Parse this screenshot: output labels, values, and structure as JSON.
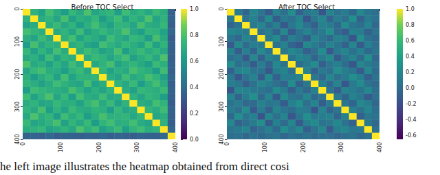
{
  "caption": "he left image illustrates the heatmap obtained from direct cosi",
  "chart_data": [
    {
      "type": "heatmap",
      "title": "Before TOC Select",
      "xlim": [
        0,
        400
      ],
      "ylim": [
        0,
        400
      ],
      "xticks": [
        0,
        100,
        200,
        300,
        400
      ],
      "yticks": [
        0,
        100,
        200,
        300,
        400
      ],
      "colorbar": {
        "range": [
          0,
          1
        ],
        "ticks": [
          {
            "value": 0,
            "label": "0.0"
          },
          0.2,
          0.4,
          0.6,
          0.8,
          {
            "value": 1,
            "label": "1.0"
          }
        ]
      },
      "cells": [
        [
          1.0,
          0.72,
          0.65,
          0.78,
          0.7,
          0.62,
          0.75,
          0.68,
          0.8,
          0.66,
          0.71,
          0.74,
          0.63,
          0.77,
          0.69,
          0.73,
          0.67,
          0.76,
          0.7,
          0.35
        ],
        [
          0.72,
          1.0,
          0.69,
          0.74,
          0.66,
          0.79,
          0.64,
          0.71,
          0.68,
          0.75,
          0.62,
          0.7,
          0.77,
          0.65,
          0.73,
          0.68,
          0.8,
          0.66,
          0.72,
          0.36
        ],
        [
          0.65,
          0.69,
          1.0,
          0.7,
          0.76,
          0.67,
          0.73,
          0.63,
          0.71,
          0.78,
          0.69,
          0.64,
          0.74,
          0.72,
          0.66,
          0.79,
          0.7,
          0.68,
          0.75,
          0.34
        ],
        [
          0.78,
          0.74,
          0.7,
          1.0,
          0.68,
          0.73,
          0.66,
          0.77,
          0.64,
          0.7,
          0.75,
          0.69,
          0.71,
          0.8,
          0.67,
          0.63,
          0.74,
          0.72,
          0.65,
          0.37
        ],
        [
          0.7,
          0.66,
          0.76,
          0.68,
          1.0,
          0.71,
          0.78,
          0.65,
          0.73,
          0.69,
          0.64,
          0.77,
          0.7,
          0.66,
          0.75,
          0.72,
          0.62,
          0.79,
          0.68,
          0.33
        ],
        [
          0.62,
          0.79,
          0.67,
          0.73,
          0.71,
          1.0,
          0.69,
          0.74,
          0.66,
          0.63,
          0.78,
          0.72,
          0.68,
          0.75,
          0.7,
          0.65,
          0.77,
          0.64,
          0.73,
          0.36
        ],
        [
          0.75,
          0.64,
          0.73,
          0.66,
          0.78,
          0.69,
          1.0,
          0.7,
          0.77,
          0.72,
          0.65,
          0.68,
          0.79,
          0.63,
          0.71,
          0.76,
          0.69,
          0.74,
          0.67,
          0.35
        ],
        [
          0.68,
          0.71,
          0.63,
          0.77,
          0.65,
          0.74,
          0.7,
          1.0,
          0.69,
          0.76,
          0.73,
          0.66,
          0.72,
          0.78,
          0.64,
          0.7,
          0.75,
          0.67,
          0.8,
          0.34
        ],
        [
          0.8,
          0.68,
          0.71,
          0.64,
          0.73,
          0.66,
          0.77,
          0.69,
          1.0,
          0.67,
          0.72,
          0.79,
          0.65,
          0.7,
          0.74,
          0.68,
          0.63,
          0.76,
          0.71,
          0.36
        ],
        [
          0.66,
          0.75,
          0.78,
          0.7,
          0.69,
          0.63,
          0.72,
          0.76,
          0.67,
          1.0,
          0.74,
          0.65,
          0.71,
          0.68,
          0.79,
          0.73,
          0.7,
          0.62,
          0.77,
          0.35
        ],
        [
          0.71,
          0.62,
          0.69,
          0.75,
          0.64,
          0.78,
          0.65,
          0.73,
          0.72,
          0.74,
          1.0,
          0.7,
          0.66,
          0.77,
          0.68,
          0.71,
          0.79,
          0.73,
          0.64,
          0.37
        ],
        [
          0.74,
          0.7,
          0.64,
          0.69,
          0.77,
          0.72,
          0.68,
          0.66,
          0.79,
          0.65,
          0.7,
          1.0,
          0.73,
          0.67,
          0.76,
          0.62,
          0.71,
          0.78,
          0.69,
          0.34
        ],
        [
          0.63,
          0.77,
          0.74,
          0.71,
          0.7,
          0.68,
          0.79,
          0.72,
          0.65,
          0.71,
          0.66,
          0.73,
          1.0,
          0.69,
          0.64,
          0.75,
          0.72,
          0.7,
          0.76,
          0.36
        ],
        [
          0.77,
          0.65,
          0.72,
          0.8,
          0.66,
          0.75,
          0.63,
          0.78,
          0.7,
          0.68,
          0.77,
          0.67,
          0.69,
          1.0,
          0.72,
          0.66,
          0.74,
          0.71,
          0.63,
          0.35
        ],
        [
          0.69,
          0.73,
          0.66,
          0.67,
          0.75,
          0.7,
          0.71,
          0.64,
          0.74,
          0.79,
          0.68,
          0.76,
          0.64,
          0.72,
          1.0,
          0.7,
          0.67,
          0.78,
          0.73,
          0.33
        ],
        [
          0.73,
          0.68,
          0.79,
          0.63,
          0.72,
          0.65,
          0.76,
          0.7,
          0.68,
          0.73,
          0.71,
          0.62,
          0.75,
          0.66,
          0.7,
          1.0,
          0.74,
          0.69,
          0.77,
          0.36
        ],
        [
          0.67,
          0.8,
          0.7,
          0.74,
          0.62,
          0.77,
          0.69,
          0.75,
          0.63,
          0.7,
          0.79,
          0.71,
          0.72,
          0.74,
          0.67,
          0.74,
          1.0,
          0.66,
          0.7,
          0.35
        ],
        [
          0.76,
          0.66,
          0.68,
          0.72,
          0.79,
          0.64,
          0.74,
          0.67,
          0.76,
          0.62,
          0.73,
          0.78,
          0.7,
          0.71,
          0.78,
          0.69,
          0.66,
          1.0,
          0.72,
          0.34
        ],
        [
          0.7,
          0.72,
          0.75,
          0.65,
          0.68,
          0.73,
          0.67,
          0.8,
          0.71,
          0.77,
          0.64,
          0.69,
          0.76,
          0.63,
          0.73,
          0.77,
          0.7,
          0.72,
          1.0,
          0.37
        ],
        [
          0.35,
          0.36,
          0.34,
          0.37,
          0.33,
          0.36,
          0.35,
          0.34,
          0.36,
          0.35,
          0.37,
          0.34,
          0.36,
          0.35,
          0.33,
          0.36,
          0.35,
          0.34,
          0.37,
          1.0
        ]
      ]
    },
    {
      "type": "heatmap",
      "title": "After TOC Select",
      "xlim": [
        0,
        400
      ],
      "ylim": [
        0,
        400
      ],
      "xticks": [
        0,
        100,
        200,
        300,
        400
      ],
      "yticks": [
        0,
        100,
        200,
        300,
        400
      ],
      "colorbar": {
        "range": [
          -0.65,
          1
        ],
        "ticks": [
          -0.6,
          -0.4,
          -0.2,
          {
            "value": 0,
            "label": "0.0"
          },
          0.2,
          0.4,
          0.6,
          0.8,
          {
            "value": 1,
            "label": "1.0"
          }
        ]
      },
      "cells": [
        [
          1.0,
          0.12,
          -0.05,
          0.21,
          0.08,
          -0.12,
          0.18,
          0.03,
          0.26,
          -0.08,
          0.1,
          0.15,
          -0.15,
          0.2,
          0.05,
          0.13,
          -0.02,
          0.22,
          0.07,
          0.02
        ],
        [
          0.12,
          1.0,
          0.06,
          0.17,
          -0.04,
          0.24,
          -0.1,
          0.11,
          0.04,
          0.19,
          -0.14,
          0.09,
          0.21,
          -0.06,
          0.14,
          0.03,
          0.27,
          -0.07,
          0.12,
          0.05
        ],
        [
          -0.05,
          0.06,
          1.0,
          0.1,
          0.2,
          0.01,
          0.16,
          -0.13,
          0.09,
          0.23,
          0.05,
          -0.09,
          0.18,
          0.13,
          -0.03,
          0.25,
          0.08,
          0.02,
          0.19,
          -0.04
        ],
        [
          0.21,
          0.17,
          0.1,
          1.0,
          0.03,
          0.15,
          -0.06,
          0.22,
          -0.11,
          0.07,
          0.19,
          0.04,
          0.11,
          0.28,
          -0.01,
          -0.12,
          0.17,
          0.13,
          -0.07,
          0.06
        ],
        [
          0.08,
          -0.04,
          0.2,
          0.03,
          1.0,
          0.11,
          0.24,
          -0.08,
          0.14,
          0.06,
          -0.1,
          0.21,
          0.07,
          -0.03,
          0.18,
          0.12,
          -0.16,
          0.26,
          0.04,
          -0.02
        ],
        [
          -0.12,
          0.24,
          0.01,
          0.15,
          0.11,
          1.0,
          0.05,
          0.18,
          -0.05,
          -0.14,
          0.23,
          0.13,
          0.02,
          0.19,
          0.08,
          -0.07,
          0.21,
          -0.11,
          0.16,
          0.03
        ],
        [
          0.18,
          -0.1,
          0.16,
          -0.06,
          0.24,
          0.05,
          1.0,
          0.09,
          0.22,
          0.14,
          -0.08,
          0.03,
          0.25,
          -0.13,
          0.1,
          0.2,
          0.04,
          0.17,
          -0.02,
          0.07
        ],
        [
          0.03,
          0.11,
          -0.13,
          0.22,
          -0.08,
          0.18,
          0.09,
          1.0,
          0.06,
          0.2,
          0.15,
          -0.05,
          0.12,
          0.24,
          -0.11,
          0.08,
          0.19,
          -0.01,
          0.27,
          -0.03
        ],
        [
          0.26,
          0.04,
          0.09,
          -0.11,
          0.14,
          -0.05,
          0.22,
          0.06,
          1.0,
          0.02,
          0.13,
          0.25,
          -0.09,
          0.07,
          0.17,
          0.01,
          -0.14,
          0.21,
          0.1,
          0.05
        ],
        [
          -0.08,
          0.19,
          0.23,
          0.07,
          0.06,
          -0.14,
          0.14,
          0.2,
          0.02,
          1.0,
          0.18,
          -0.07,
          0.11,
          0.04,
          0.26,
          0.15,
          0.08,
          -0.12,
          0.22,
          0.01
        ],
        [
          0.1,
          -0.14,
          0.05,
          0.19,
          -0.1,
          0.23,
          -0.08,
          0.15,
          0.13,
          0.18,
          1.0,
          0.09,
          -0.04,
          0.21,
          0.03,
          0.11,
          0.27,
          0.16,
          -0.09,
          0.06
        ],
        [
          0.15,
          0.09,
          -0.09,
          0.04,
          0.21,
          0.13,
          0.03,
          -0.05,
          0.25,
          -0.07,
          0.09,
          1.0,
          0.17,
          -0.02,
          0.2,
          -0.15,
          0.1,
          0.24,
          0.05,
          -0.01
        ],
        [
          -0.15,
          0.21,
          0.18,
          0.11,
          0.07,
          0.02,
          0.25,
          0.12,
          -0.09,
          0.11,
          -0.04,
          0.17,
          1.0,
          0.08,
          -0.1,
          0.19,
          0.14,
          0.06,
          0.22,
          0.04
        ],
        [
          0.2,
          -0.06,
          0.13,
          0.28,
          -0.03,
          0.19,
          -0.13,
          0.24,
          0.07,
          0.04,
          0.21,
          -0.02,
          0.08,
          1.0,
          0.12,
          -0.06,
          0.18,
          0.09,
          -0.12,
          0.03
        ],
        [
          0.05,
          0.14,
          -0.03,
          -0.01,
          0.18,
          0.08,
          0.1,
          -0.11,
          0.17,
          0.26,
          0.03,
          0.2,
          -0.1,
          0.12,
          1.0,
          0.07,
          -0.05,
          0.23,
          0.15,
          -0.04
        ],
        [
          0.13,
          0.03,
          0.25,
          -0.12,
          0.12,
          -0.07,
          0.2,
          0.08,
          0.01,
          0.15,
          0.11,
          -0.15,
          0.19,
          -0.06,
          0.07,
          1.0,
          0.16,
          0.05,
          0.21,
          0.02
        ],
        [
          -0.02,
          0.27,
          0.08,
          0.17,
          -0.16,
          0.21,
          0.04,
          0.19,
          -0.14,
          0.08,
          0.27,
          0.1,
          0.14,
          0.18,
          -0.05,
          0.16,
          1.0,
          -0.08,
          0.09,
          0.06
        ],
        [
          0.22,
          -0.07,
          0.02,
          0.13,
          0.26,
          -0.11,
          0.17,
          -0.01,
          0.21,
          -0.12,
          0.16,
          0.24,
          0.06,
          0.09,
          0.23,
          0.05,
          -0.08,
          1.0,
          0.11,
          -0.03
        ],
        [
          0.07,
          0.12,
          0.19,
          -0.07,
          0.04,
          0.16,
          -0.02,
          0.27,
          0.1,
          0.22,
          -0.09,
          0.05,
          0.22,
          -0.12,
          0.15,
          0.21,
          0.09,
          0.11,
          1.0,
          0.04
        ],
        [
          0.02,
          0.05,
          -0.04,
          0.06,
          -0.02,
          0.03,
          0.07,
          -0.03,
          0.05,
          0.01,
          0.06,
          -0.01,
          0.04,
          0.03,
          -0.04,
          0.02,
          0.06,
          -0.03,
          0.04,
          1.0
        ]
      ]
    }
  ]
}
